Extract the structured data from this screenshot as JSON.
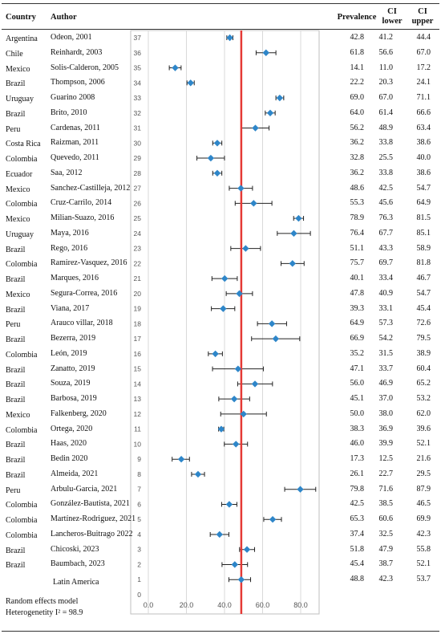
{
  "headers": {
    "country": "Country",
    "author": "Author",
    "prevalence": "Prevalence",
    "ci_lower": "CI lower",
    "ci_upper": "CI upper"
  },
  "notes": {
    "model": "Random effects model",
    "heterogeneity": "Heterogenetity I² = 98.9"
  },
  "colors": {
    "marker": "#2e86c9",
    "reference_line": "#e53935",
    "ci_line": "#222222",
    "grid": "#d9d9d9"
  },
  "chart_data": {
    "type": "forest",
    "xlim": [
      0,
      80
    ],
    "x_ticks": [
      "0.0",
      "20.0",
      "40.0",
      "60.0",
      "80.0"
    ],
    "ylim": [
      0,
      37
    ],
    "y_ticks": [
      "0",
      "1",
      "2",
      "3",
      "4",
      "5",
      "6",
      "7",
      "8",
      "9",
      "10",
      "11",
      "12",
      "13",
      "14",
      "15",
      "16",
      "17",
      "18",
      "19",
      "20",
      "21",
      "22",
      "23",
      "24",
      "25",
      "26",
      "27",
      "28",
      "29",
      "30",
      "31",
      "32",
      "33",
      "34",
      "35",
      "36",
      "37"
    ],
    "grid": true,
    "reference_line_x": 48.8,
    "studies": [
      {
        "y": 37,
        "country": "Argentina",
        "author": "Odeon, 2001",
        "prevalence": 42.8,
        "ci_lower": 41.2,
        "ci_upper": 44.4
      },
      {
        "y": 36,
        "country": "Chile",
        "author": "Reinhardt, 2003",
        "prevalence": 61.8,
        "ci_lower": 56.6,
        "ci_upper": 67.0
      },
      {
        "y": 35,
        "country": "Mexico",
        "author": "Solis-Calderon, 2005",
        "prevalence": 14.1,
        "ci_lower": 11.0,
        "ci_upper": 17.2
      },
      {
        "y": 34,
        "country": "Brazil",
        "author": "Thompson, 2006",
        "prevalence": 22.2,
        "ci_lower": 20.3,
        "ci_upper": 24.1
      },
      {
        "y": 33,
        "country": "Uruguay",
        "author": "Guarino 2008",
        "prevalence": 69.0,
        "ci_lower": 67.0,
        "ci_upper": 71.1
      },
      {
        "y": 32,
        "country": "Brazil",
        "author": "Brito, 2010",
        "prevalence": 64.0,
        "ci_lower": 61.4,
        "ci_upper": 66.6
      },
      {
        "y": 31,
        "country": "Peru",
        "author": "Cardenas, 2011",
        "prevalence": 56.2,
        "ci_lower": 48.9,
        "ci_upper": 63.4
      },
      {
        "y": 30,
        "country": "Costa Rica",
        "author": "Raizman, 2011",
        "prevalence": 36.2,
        "ci_lower": 33.8,
        "ci_upper": 38.6
      },
      {
        "y": 29,
        "country": "Colombia",
        "author": "Quevedo, 2011",
        "prevalence": 32.8,
        "ci_lower": 25.5,
        "ci_upper": 40.0
      },
      {
        "y": 28,
        "country": "Ecuador",
        "author": "Saa, 2012",
        "prevalence": 36.2,
        "ci_lower": 33.8,
        "ci_upper": 38.6
      },
      {
        "y": 27,
        "country": "Mexico",
        "author": "Sanchez-Castilleja, 2012",
        "prevalence": 48.6,
        "ci_lower": 42.5,
        "ci_upper": 54.7
      },
      {
        "y": 26,
        "country": "Colombia",
        "author": "Cruz-Carrilo, 2014",
        "prevalence": 55.3,
        "ci_lower": 45.6,
        "ci_upper": 64.9
      },
      {
        "y": 25,
        "country": "Mexico",
        "author": "Milian-Suazo, 2016",
        "prevalence": 78.9,
        "ci_lower": 76.3,
        "ci_upper": 81.5
      },
      {
        "y": 24,
        "country": "Uruguay",
        "author": "Maya, 2016",
        "prevalence": 76.4,
        "ci_lower": 67.7,
        "ci_upper": 85.1
      },
      {
        "y": 23,
        "country": "Brazil",
        "author": "Rego, 2016",
        "prevalence": 51.1,
        "ci_lower": 43.3,
        "ci_upper": 58.9
      },
      {
        "y": 22,
        "country": "Colombia",
        "author": "Ramirez-Vasquez, 2016",
        "prevalence": 75.7,
        "ci_lower": 69.7,
        "ci_upper": 81.8
      },
      {
        "y": 21,
        "country": "Brazil",
        "author": "Marques, 2016",
        "prevalence": 40.1,
        "ci_lower": 33.4,
        "ci_upper": 46.7
      },
      {
        "y": 20,
        "country": "Mexico",
        "author": "Segura-Correa, 2016",
        "prevalence": 47.8,
        "ci_lower": 40.9,
        "ci_upper": 54.7
      },
      {
        "y": 19,
        "country": "Brazil",
        "author": "Viana, 2017",
        "prevalence": 39.3,
        "ci_lower": 33.1,
        "ci_upper": 45.4
      },
      {
        "y": 18,
        "country": "Peru",
        "author": "Arauco villar, 2018",
        "prevalence": 64.9,
        "ci_lower": 57.3,
        "ci_upper": 72.6
      },
      {
        "y": 17,
        "country": "Brazil",
        "author": "Bezerra, 2019",
        "prevalence": 66.9,
        "ci_lower": 54.2,
        "ci_upper": 79.5
      },
      {
        "y": 16,
        "country": "Colombia",
        "author": "León, 2019",
        "prevalence": 35.2,
        "ci_lower": 31.5,
        "ci_upper": 38.9
      },
      {
        "y": 15,
        "country": "Brazil",
        "author": "Zanatto, 2019",
        "prevalence": 47.1,
        "ci_lower": 33.7,
        "ci_upper": 60.4
      },
      {
        "y": 14,
        "country": "Brazil",
        "author": "Souza, 2019",
        "prevalence": 56.0,
        "ci_lower": 46.9,
        "ci_upper": 65.2
      },
      {
        "y": 13,
        "country": "Brazil",
        "author": "Barbosa, 2019",
        "prevalence": 45.1,
        "ci_lower": 37.0,
        "ci_upper": 53.2
      },
      {
        "y": 12,
        "country": "Mexico",
        "author": "Falkenberg, 2020",
        "prevalence": 50.0,
        "ci_lower": 38.0,
        "ci_upper": 62.0
      },
      {
        "y": 11,
        "country": "Colombia",
        "author": "Ortega, 2020",
        "prevalence": 38.3,
        "ci_lower": 36.9,
        "ci_upper": 39.6
      },
      {
        "y": 10,
        "country": "Brazil",
        "author": "Haas, 2020",
        "prevalence": 46.0,
        "ci_lower": 39.9,
        "ci_upper": 52.1
      },
      {
        "y": 9,
        "country": "Brazil",
        "author": "Bedin 2020",
        "prevalence": 17.3,
        "ci_lower": 12.5,
        "ci_upper": 21.6
      },
      {
        "y": 8,
        "country": "Brazil",
        "author": "Almeida, 2021",
        "prevalence": 26.1,
        "ci_lower": 22.7,
        "ci_upper": 29.5
      },
      {
        "y": 7,
        "country": "Peru",
        "author": "Arbulu-Garcia, 2021",
        "prevalence": 79.8,
        "ci_lower": 71.6,
        "ci_upper": 87.9
      },
      {
        "y": 6,
        "country": "Colombia",
        "author": "González-Bautista, 2021",
        "prevalence": 42.5,
        "ci_lower": 38.5,
        "ci_upper": 46.5
      },
      {
        "y": 5,
        "country": "Colombia",
        "author": "Martínez-Rodriguez, 2021",
        "prevalence": 65.3,
        "ci_lower": 60.6,
        "ci_upper": 69.9
      },
      {
        "y": 4,
        "country": "Colombia",
        "author": "Lancheros-Buitrago 2022",
        "prevalence": 37.4,
        "ci_lower": 32.5,
        "ci_upper": 42.3
      },
      {
        "y": 3,
        "country": "Brazil",
        "author": "Chicoski, 2023",
        "prevalence": 51.8,
        "ci_lower": 47.9,
        "ci_upper": 55.8
      },
      {
        "y": 2,
        "country": "Brazil",
        "author": "Baumbach, 2023",
        "prevalence": 45.4,
        "ci_lower": 38.7,
        "ci_upper": 52.1
      },
      {
        "y": 1,
        "country": "",
        "author": "Latin America",
        "prevalence": 48.8,
        "ci_lower": 42.3,
        "ci_upper": 53.7
      }
    ]
  }
}
